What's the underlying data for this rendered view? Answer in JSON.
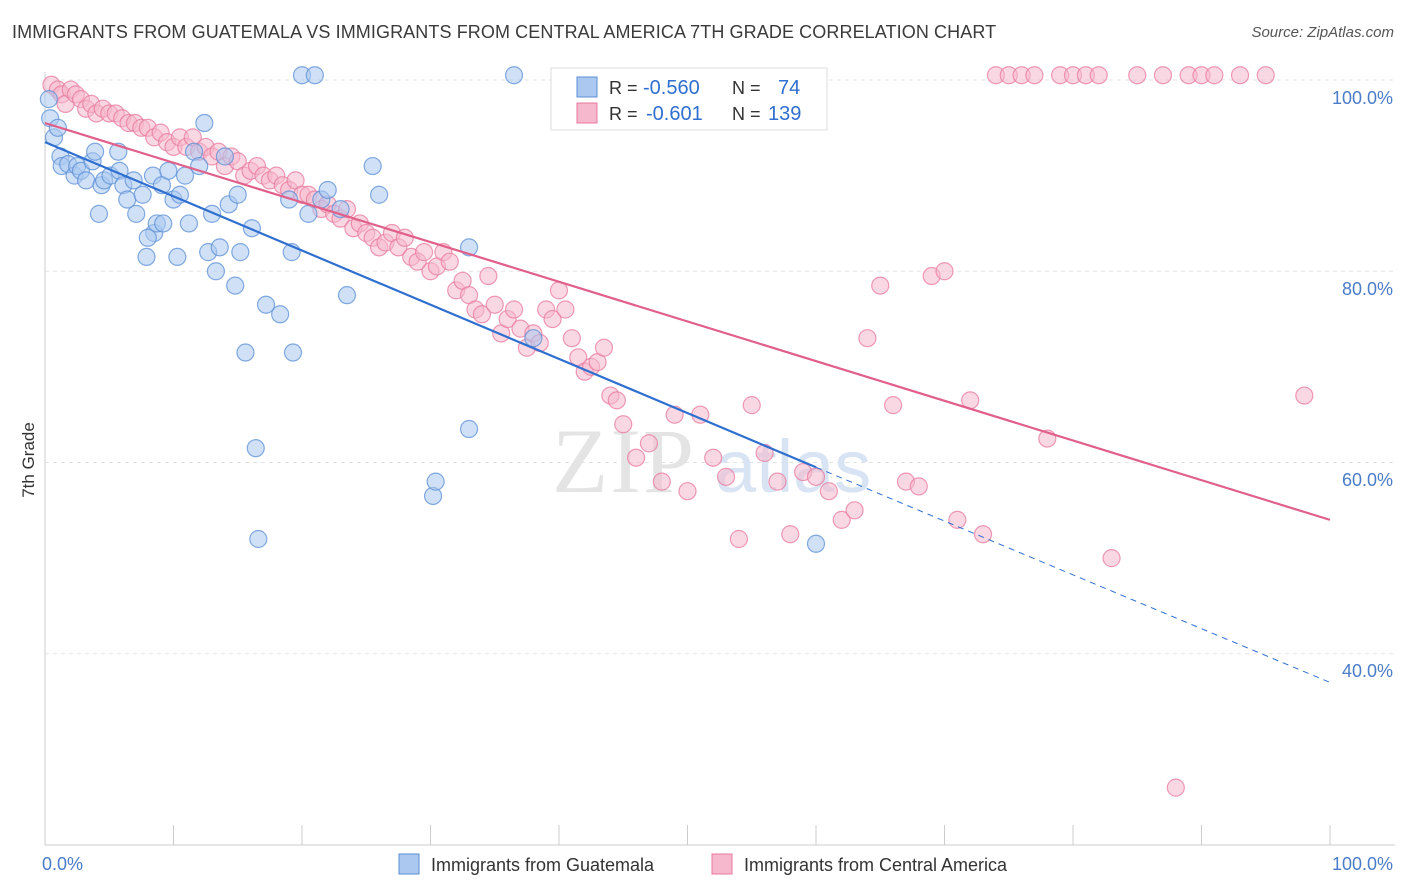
{
  "header": {
    "title": "IMMIGRANTS FROM GUATEMALA VS IMMIGRANTS FROM CENTRAL AMERICA 7TH GRADE CORRELATION CHART",
    "source": "Source: ZipAtlas.com"
  },
  "watermark": {
    "zip": "ZIP",
    "atlas": "atlas"
  },
  "colors": {
    "blue": "#5b8fd6",
    "blue_fill": "#aac8f0",
    "blue_line": "#2f6fd0",
    "pink": "#e8799e",
    "pink_fill": "#f6b8cc",
    "pink_line": "#e0608a",
    "tick_text": "#4a7cc9",
    "grid": "#e3e3e3"
  },
  "stats": [
    {
      "r_label": "R =",
      "r_value": "-0.560",
      "n_label": "N =",
      "n_value": "74"
    },
    {
      "r_label": "R =",
      "r_value": "-0.601",
      "n_label": "N =",
      "n_value": "139"
    }
  ],
  "chart_data": {
    "type": "scatter",
    "title": "IMMIGRANTS FROM GUATEMALA VS IMMIGRANTS FROM CENTRAL AMERICA 7TH GRADE CORRELATION CHART",
    "xlabel": "",
    "ylabel": "7th Grade",
    "x_tick_labels": [
      "0.0%",
      "100.0%"
    ],
    "y_tick_labels": [
      "100.0%",
      "80.0%",
      "60.0%",
      "40.0%"
    ],
    "y_ticks": [
      100,
      80,
      60,
      40
    ],
    "xlim": [
      0,
      100
    ],
    "ylim": [
      19,
      101.5
    ],
    "grid": true,
    "legend_position": "bottom-center",
    "series": [
      {
        "name": "Immigrants from Guatemala",
        "color": "#5b8fd6",
        "trend": {
          "x": [
            0,
            60
          ],
          "y": [
            93.5,
            59.5
          ],
          "dash_to": [
            100,
            37
          ]
        },
        "points": [
          [
            0.3,
            98
          ],
          [
            0.4,
            96
          ],
          [
            0.7,
            94
          ],
          [
            1,
            95
          ],
          [
            1.2,
            92
          ],
          [
            1.3,
            91
          ],
          [
            1.8,
            91.2
          ],
          [
            2.3,
            90
          ],
          [
            2.5,
            91
          ],
          [
            2.8,
            90.5
          ],
          [
            3.2,
            89.5
          ],
          [
            3.7,
            91.5
          ],
          [
            3.9,
            92.5
          ],
          [
            4.2,
            86
          ],
          [
            4.4,
            89
          ],
          [
            4.6,
            89.5
          ],
          [
            5.1,
            90
          ],
          [
            5.7,
            92.5
          ],
          [
            5.8,
            90.5
          ],
          [
            6.1,
            89
          ],
          [
            6.4,
            87.5
          ],
          [
            6.9,
            89.5
          ],
          [
            7.1,
            86
          ],
          [
            7.6,
            88
          ],
          [
            7.9,
            81.5
          ],
          [
            8.4,
            90
          ],
          [
            8.5,
            84
          ],
          [
            8.7,
            85
          ],
          [
            9.1,
            89
          ],
          [
            9.2,
            85
          ],
          [
            9.6,
            90.5
          ],
          [
            10,
            87.5
          ],
          [
            10.3,
            81.5
          ],
          [
            10.5,
            88
          ],
          [
            10.9,
            90
          ],
          [
            11.2,
            85
          ],
          [
            11.6,
            92.5
          ],
          [
            12,
            91
          ],
          [
            12.4,
            95.5
          ],
          [
            12.7,
            82
          ],
          [
            13,
            86
          ],
          [
            13.3,
            80
          ],
          [
            13.6,
            82.5
          ],
          [
            14,
            92
          ],
          [
            14.3,
            87
          ],
          [
            14.8,
            78.5
          ],
          [
            15.2,
            82
          ],
          [
            15.6,
            71.5
          ],
          [
            16.1,
            84.5
          ],
          [
            16.4,
            61.5
          ],
          [
            16.6,
            52
          ],
          [
            17.2,
            76.5
          ],
          [
            18.3,
            75.5
          ],
          [
            19,
            87.5
          ],
          [
            19.2,
            82
          ],
          [
            19.3,
            71.5
          ],
          [
            20,
            100.5
          ],
          [
            20.5,
            86
          ],
          [
            21,
            100.5
          ],
          [
            21.5,
            87.5
          ],
          [
            22,
            88.5
          ],
          [
            23,
            86.5
          ],
          [
            23.5,
            77.5
          ],
          [
            25.5,
            91
          ],
          [
            30.2,
            56.5
          ],
          [
            30.4,
            58
          ],
          [
            33,
            63.5
          ],
          [
            36.5,
            100.5
          ],
          [
            38,
            73
          ],
          [
            60,
            51.5
          ],
          [
            26,
            88
          ],
          [
            15,
            88
          ],
          [
            33,
            82.5
          ],
          [
            8,
            83.5
          ]
        ]
      },
      {
        "name": "Immigrants from Central America",
        "color": "#e8799e",
        "trend": {
          "x": [
            0,
            100
          ],
          "y": [
            95.5,
            54
          ]
        },
        "points": [
          [
            0.5,
            99.5
          ],
          [
            1,
            99
          ],
          [
            1.3,
            98.5
          ],
          [
            1.6,
            97.5
          ],
          [
            2,
            99
          ],
          [
            2.4,
            98.5
          ],
          [
            2.8,
            98
          ],
          [
            3.2,
            97
          ],
          [
            3.6,
            97.5
          ],
          [
            4,
            96.5
          ],
          [
            4.5,
            97
          ],
          [
            5,
            96.5
          ],
          [
            5.5,
            96.5
          ],
          [
            6,
            96
          ],
          [
            6.5,
            95.5
          ],
          [
            7,
            95.5
          ],
          [
            7.5,
            95
          ],
          [
            8,
            95
          ],
          [
            8.5,
            94
          ],
          [
            9,
            94.5
          ],
          [
            9.5,
            93.5
          ],
          [
            10,
            93
          ],
          [
            10.5,
            94
          ],
          [
            11,
            93
          ],
          [
            11.5,
            94
          ],
          [
            12,
            92.5
          ],
          [
            12.5,
            93
          ],
          [
            13,
            92
          ],
          [
            13.5,
            92.5
          ],
          [
            14,
            91
          ],
          [
            14.5,
            92
          ],
          [
            15,
            91.5
          ],
          [
            15.5,
            90
          ],
          [
            16,
            90.5
          ],
          [
            16.5,
            91
          ],
          [
            17,
            90
          ],
          [
            17.5,
            89.5
          ],
          [
            18,
            90
          ],
          [
            18.5,
            89
          ],
          [
            19,
            88.5
          ],
          [
            19.5,
            89.5
          ],
          [
            20,
            88
          ],
          [
            20.5,
            88
          ],
          [
            21,
            87.5
          ],
          [
            21.5,
            86.5
          ],
          [
            22,
            87
          ],
          [
            22.5,
            86
          ],
          [
            23,
            85.5
          ],
          [
            23.5,
            86.5
          ],
          [
            24,
            84.5
          ],
          [
            24.5,
            85
          ],
          [
            25,
            84
          ],
          [
            25.5,
            83.5
          ],
          [
            26,
            82.5
          ],
          [
            26.5,
            83
          ],
          [
            27,
            84
          ],
          [
            27.5,
            82.5
          ],
          [
            28,
            83.5
          ],
          [
            28.5,
            81.5
          ],
          [
            29,
            81
          ],
          [
            29.5,
            82
          ],
          [
            30,
            80
          ],
          [
            30.5,
            80.5
          ],
          [
            31,
            82
          ],
          [
            31.5,
            81
          ],
          [
            32,
            78
          ],
          [
            32.5,
            79
          ],
          [
            33,
            77.5
          ],
          [
            33.5,
            76
          ],
          [
            34,
            75.5
          ],
          [
            34.5,
            79.5
          ],
          [
            35,
            76.5
          ],
          [
            35.5,
            73.5
          ],
          [
            36,
            75
          ],
          [
            36.5,
            76
          ],
          [
            37,
            74
          ],
          [
            37.5,
            72
          ],
          [
            38,
            73.5
          ],
          [
            38.5,
            72.5
          ],
          [
            39,
            76
          ],
          [
            39.5,
            75
          ],
          [
            40,
            78
          ],
          [
            40.5,
            76
          ],
          [
            41,
            73
          ],
          [
            41.5,
            71
          ],
          [
            42,
            69.5
          ],
          [
            42.5,
            70
          ],
          [
            43,
            70.5
          ],
          [
            43.5,
            72
          ],
          [
            44,
            67
          ],
          [
            44.5,
            66.5
          ],
          [
            45,
            64
          ],
          [
            46,
            60.5
          ],
          [
            47,
            62
          ],
          [
            48,
            58
          ],
          [
            49,
            65
          ],
          [
            50,
            57
          ],
          [
            51,
            65
          ],
          [
            52,
            60.5
          ],
          [
            53,
            58.5
          ],
          [
            54,
            52
          ],
          [
            55,
            66
          ],
          [
            56,
            61
          ],
          [
            57,
            58
          ],
          [
            58,
            52.5
          ],
          [
            59,
            59
          ],
          [
            60,
            58.5
          ],
          [
            61,
            57
          ],
          [
            62,
            54
          ],
          [
            63,
            55
          ],
          [
            64,
            73
          ],
          [
            65,
            78.5
          ],
          [
            66,
            66
          ],
          [
            67,
            58
          ],
          [
            68,
            57.5
          ],
          [
            69,
            79.5
          ],
          [
            70,
            80
          ],
          [
            71,
            54
          ],
          [
            72,
            66.5
          ],
          [
            73,
            52.5
          ],
          [
            74,
            100.5
          ],
          [
            75,
            100.5
          ],
          [
            76,
            100.5
          ],
          [
            77,
            100.5
          ],
          [
            78,
            62.5
          ],
          [
            79,
            100.5
          ],
          [
            80,
            100.5
          ],
          [
            81,
            100.5
          ],
          [
            82,
            100.5
          ],
          [
            83,
            50
          ],
          [
            85,
            100.5
          ],
          [
            87,
            100.5
          ],
          [
            88,
            26
          ],
          [
            89,
            100.5
          ],
          [
            90,
            100.5
          ],
          [
            91,
            100.5
          ],
          [
            93,
            100.5
          ],
          [
            95,
            100.5
          ],
          [
            98,
            67
          ]
        ]
      }
    ]
  },
  "legend": {
    "items": [
      {
        "label": "Immigrants from Guatemala"
      },
      {
        "label": "Immigrants from Central America"
      }
    ]
  }
}
